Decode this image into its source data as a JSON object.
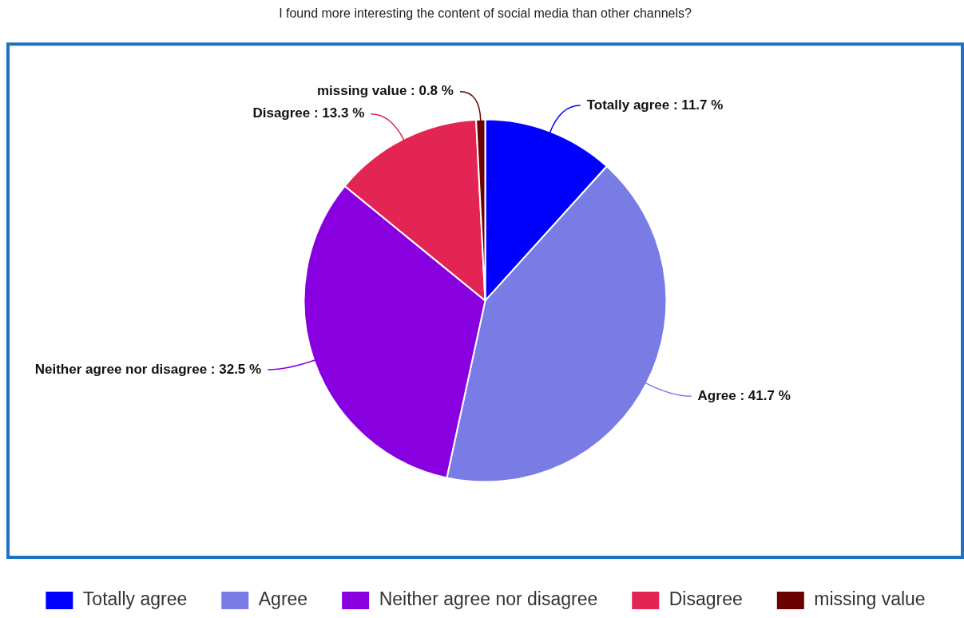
{
  "chart_data": {
    "type": "pie",
    "title": "I found more interesting the content of social media than other channels?",
    "categories": [
      "Totally agree",
      "Agree",
      "Neither agree nor disagree",
      "Disagree",
      "missing value"
    ],
    "values": [
      11.7,
      41.7,
      32.5,
      13.3,
      0.8
    ],
    "colors": [
      "#0000ff",
      "#7a7ce6",
      "#8800e0",
      "#e32553",
      "#6b0000"
    ],
    "value_labels": [
      "Totally agree : 11.7 %",
      "Agree : 41.7 %",
      "Neither agree nor disagree : 32.5 %",
      "Disagree : 13.3 %",
      "missing value : 0.8 %"
    ],
    "legend": "bottom"
  }
}
